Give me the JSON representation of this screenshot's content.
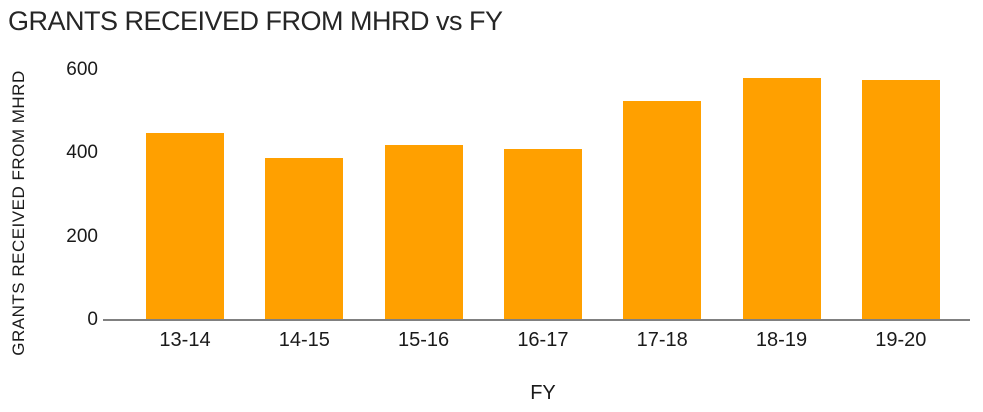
{
  "chart_data": {
    "type": "bar",
    "title": "GRANTS RECEIVED FROM MHRD vs FY",
    "xlabel": "FY",
    "ylabel": "GRANTS RECEIVED FROM MHRD",
    "categories": [
      "13-14",
      "14-15",
      "15-16",
      "16-17",
      "17-18",
      "18-19",
      "19-20"
    ],
    "values": [
      450,
      390,
      420,
      410,
      525,
      580,
      575
    ],
    "yticks": [
      0,
      200,
      400,
      600
    ],
    "ylim": [
      0,
      600
    ],
    "grid": false,
    "legend": false,
    "colors": {
      "bar": "#FFA000",
      "axis_line": "#808080",
      "text": "#262626"
    }
  }
}
